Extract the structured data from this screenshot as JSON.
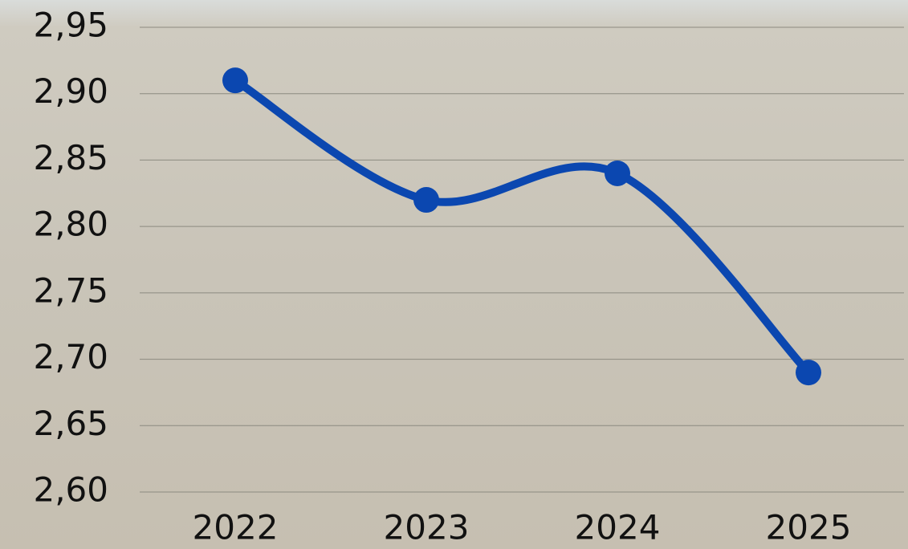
{
  "chart_data": {
    "type": "line",
    "categories": [
      "2022",
      "2023",
      "2024",
      "2025"
    ],
    "values": [
      2.91,
      2.82,
      2.84,
      2.69
    ],
    "color": "#0b47b0",
    "ylim": [
      2.6,
      2.95
    ],
    "yticks": [
      {
        "value": 2.6,
        "label": "2,60"
      },
      {
        "value": 2.65,
        "label": "2,65"
      },
      {
        "value": 2.7,
        "label": "2,70"
      },
      {
        "value": 2.75,
        "label": "2,75"
      },
      {
        "value": 2.8,
        "label": "2,80"
      },
      {
        "value": 2.85,
        "label": "2,85"
      },
      {
        "value": 2.9,
        "label": "2,90"
      },
      {
        "value": 2.95,
        "label": "2,95"
      }
    ],
    "grid": true
  }
}
